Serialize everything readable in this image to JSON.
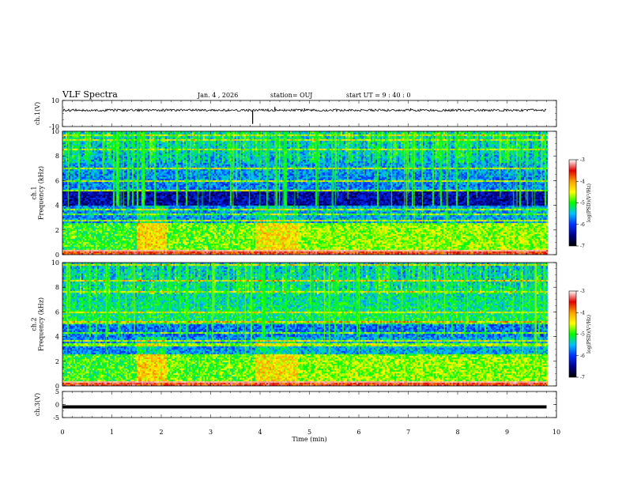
{
  "header": {
    "title": "VLF Spectra",
    "date": "Jan. 4 , 2026",
    "station": "station= OUJ",
    "start": "start  UT =   9 : 40 : 0"
  },
  "chart_data": [
    {
      "type": "line",
      "panel": "ch1-waveform",
      "ylabel": "ch.1(V)",
      "ylim": [
        -10,
        10
      ],
      "yticks": [
        "10",
        "-10"
      ],
      "baseline": 2.5,
      "spikes": [
        {
          "x": 3.85,
          "y": -8
        },
        {
          "x": 4.3,
          "y": 5
        },
        {
          "x": 7.05,
          "y": 4
        },
        {
          "x": 4.9,
          "y": 4
        }
      ],
      "xlim": [
        0,
        10
      ]
    },
    {
      "type": "heatmap",
      "panel": "ch1-spectrogram",
      "ylabel": "ch.1  Frequency (kHz)",
      "ylim": [
        0,
        10
      ],
      "yticks": [
        "0",
        "2",
        "4",
        "6",
        "8",
        "10"
      ],
      "xlim": [
        0,
        10
      ],
      "data_end_min": 9.8,
      "colorbar": {
        "label": "log(PSD)(V²/Hz)",
        "range": [
          -7,
          -3
        ],
        "ticks": [
          "-3",
          "-4",
          "-5",
          "-6",
          "-7"
        ],
        "colors": [
          "#ffffff",
          "#e00000",
          "#ffa000",
          "#ffff00",
          "#00ff00",
          "#00c0ff",
          "#0030ff",
          "#00008a",
          "#000000"
        ]
      },
      "segment_boundaries_min": [
        1.5,
        2.1,
        3.9,
        4.75
      ]
    },
    {
      "type": "heatmap",
      "panel": "ch2-spectrogram",
      "ylabel": "ch.2  Frequency (kHz)",
      "ylim": [
        0,
        10
      ],
      "yticks": [
        "0",
        "2",
        "4",
        "6",
        "8",
        "10"
      ],
      "xlim": [
        0,
        10
      ],
      "data_end_min": 9.8,
      "colorbar": {
        "label": "log(PSD)(V²/Hz)",
        "range": [
          -7,
          -3
        ],
        "ticks": [
          "-3",
          "-4",
          "-5",
          "-6",
          "-7"
        ],
        "colors": [
          "#ffffff",
          "#e00000",
          "#ffa000",
          "#ffff00",
          "#00ff00",
          "#00c0ff",
          "#0030ff",
          "#00008a",
          "#000000"
        ]
      },
      "segment_boundaries_min": [
        1.5,
        2.1,
        3.9,
        4.75
      ]
    },
    {
      "type": "line",
      "panel": "ch3-waveform",
      "ylabel": "ch.3(V)",
      "ylim": [
        -5,
        5
      ],
      "yticks": [
        "5",
        "0",
        "-5"
      ],
      "value": 0,
      "xlim": [
        0,
        10
      ],
      "xlabel": "Time (min)",
      "xticks": [
        "0",
        "1",
        "2",
        "3",
        "4",
        "5",
        "6",
        "7",
        "8",
        "9",
        "10"
      ]
    }
  ]
}
